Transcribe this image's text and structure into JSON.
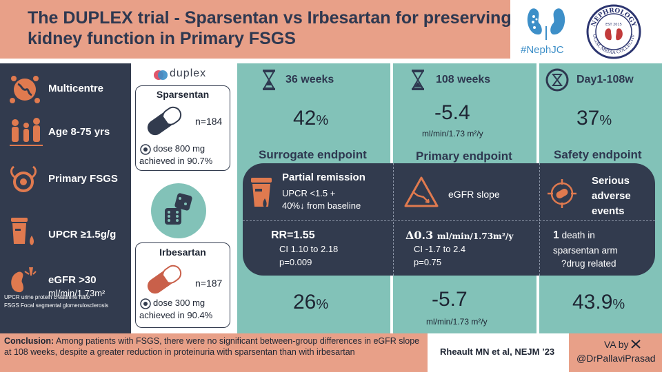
{
  "header": {
    "title": "The DUPLEX trial - Sparsentan vs Irbesartan for preserving kidney function in Primary FSGS",
    "hashtag": "#NephJC",
    "seal_text": "NEPHROLOGY",
    "seal_sub": "SOCIAL MEDIA COLLECTIVE",
    "seal_est": "EST 2015"
  },
  "left_panel": {
    "items": [
      {
        "label": "Multicentre",
        "icon": "globe-people-icon"
      },
      {
        "label": "Age 8-75 yrs",
        "icon": "people-icon"
      },
      {
        "label": "Primary FSGS",
        "icon": "kidney-glomerulus-icon"
      },
      {
        "label": "UPCR ≥1.5g/g",
        "icon": "urine-cup-icon"
      },
      {
        "label_1": "eGFR >30",
        "label_2": "ml/min/1.73m²",
        "icon": "kidney-alert-icon"
      }
    ],
    "footnote_1": "UPCR urine protein creatinine ratio",
    "footnote_2": "FSGS Focal segmental glomerulosclerosis"
  },
  "middle": {
    "logo_text": "duplex",
    "sparsentan": {
      "name": "Sparsentan",
      "n": "n=184",
      "dose_1": "dose 800 mg",
      "dose_2": "achieved in 90.7%"
    },
    "irbesartan": {
      "name": "Irbesartan",
      "n": "n=187",
      "dose_1": "dose 300 mg",
      "dose_2": "achieved in 90.4%"
    }
  },
  "col36": {
    "heading": "36 weeks",
    "top_value": "42",
    "top_unit": "%",
    "endpoint": "Surrogate endpoint",
    "band_title": "Partial remission",
    "band_line_1": "UPCR <1.5 +",
    "band_line_2": "40%↓ from baseline",
    "rr": "RR=1.55",
    "ci": "CI 1.10 to 2.18",
    "p": "p=0.009",
    "bottom_value": "26",
    "bottom_unit": "%"
  },
  "col108": {
    "heading": "108 weeks",
    "top_value": "-5.4",
    "top_unit": "ml/min/1.73 m²/y",
    "endpoint": "Primary endpoint",
    "band_title": "eGFR slope",
    "delta": "Δ0.3",
    "delta_unit": "ml/min/1.73m²/y",
    "ci": "CI -1.7 to 2.4",
    "p": "p=0.75",
    "bottom_value": "-5.7",
    "bottom_unit": "ml/min/1.73 m²/y"
  },
  "colsafe": {
    "heading": "Day1-108w",
    "top_value": "37",
    "top_unit": "%",
    "endpoint": "Safety endpoint",
    "band_line_1": "Serious",
    "band_line_2": "adverse",
    "band_line_3": "events",
    "death_count": "1",
    "death_text": " death in",
    "death_line_2": "sparsentan arm",
    "death_line_3": "?drug related",
    "bottom_value": "43.9",
    "bottom_unit": "%"
  },
  "footer": {
    "conclusion_label": "Conclusion:",
    "conclusion_text": " Among patients with FSGS, there were no significant between-group differences in eGFR slope at 108 weeks, despite a greater reduction in proteinuria with sparsentan than with irbesartan",
    "citation": "Rheault MN et al, NEJM ’23",
    "va_by": "VA by",
    "handle": "@DrPallaviPrasad"
  },
  "colors": {
    "salmon": "#e8a088",
    "navy": "#323b4e",
    "teal": "#82c2b8",
    "orange_icon": "#e07a4f"
  }
}
